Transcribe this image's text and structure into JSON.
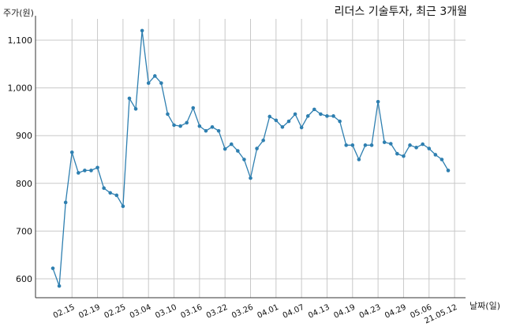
{
  "chart_data": {
    "type": "line",
    "title": "리더스 기술투자, 최근 3개월",
    "ylabel": "주가(원)",
    "xlabel": "날짜(일)",
    "ylim": [
      560,
      1140
    ],
    "yticks": [
      600,
      700,
      800,
      900,
      1000,
      1100
    ],
    "ytick_labels": [
      "600",
      "700",
      "800",
      "900",
      "1,000",
      "1,100"
    ],
    "grid": true,
    "series_color": "#2e7fb0",
    "x_tick_labels": [
      "02.15",
      "02.19",
      "02.25",
      "03.04",
      "03.10",
      "03.16",
      "03.22",
      "03.26",
      "04.01",
      "04.07",
      "04.13",
      "04.19",
      "04.23",
      "04.29",
      "05.06",
      "21.05.12"
    ],
    "x_tick_index": [
      3,
      7,
      11,
      15,
      19,
      23,
      27,
      31,
      35,
      39,
      43,
      47,
      51,
      55,
      59,
      63
    ],
    "series": [
      {
        "values": [
          622,
          585,
          760,
          865,
          822,
          827,
          827,
          833,
          790,
          780,
          775,
          752,
          978,
          956,
          1120,
          1010,
          1025,
          1010,
          945,
          922,
          920,
          927,
          958,
          920,
          910,
          918,
          910,
          872,
          882,
          868,
          850,
          811,
          873,
          890,
          940,
          932,
          918,
          930,
          945,
          917,
          941,
          955,
          945,
          941,
          941,
          930,
          880,
          880,
          850,
          880,
          880,
          971,
          886,
          883,
          862,
          857,
          880,
          875,
          882,
          873,
          860,
          850,
          827
        ]
      }
    ]
  }
}
